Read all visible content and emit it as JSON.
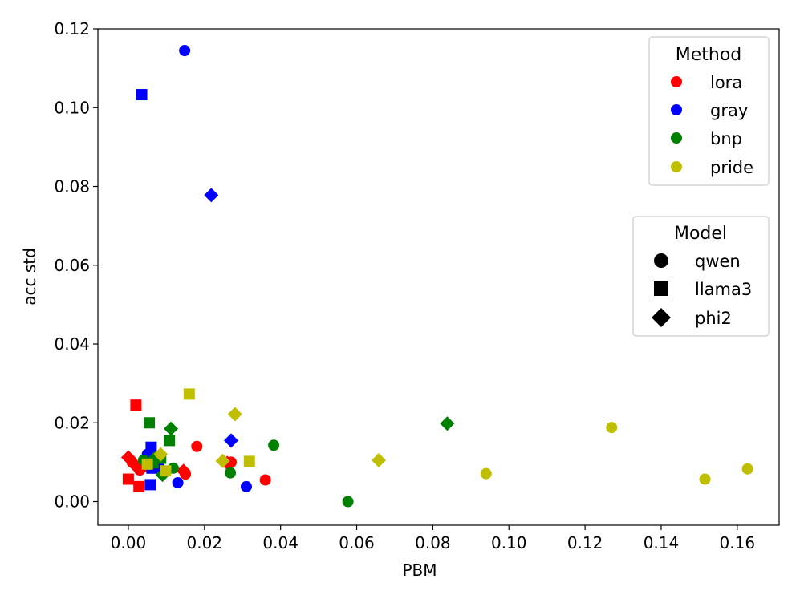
{
  "chart_data": {
    "type": "scatter",
    "xlabel": "PBM",
    "ylabel": "acc std",
    "xlim": [
      -0.008,
      0.171
    ],
    "ylim": [
      -0.006,
      0.12
    ],
    "xticks": [
      "0.00",
      "0.02",
      "0.04",
      "0.06",
      "0.08",
      "0.10",
      "0.12",
      "0.14",
      "0.16"
    ],
    "yticks": [
      "0.00",
      "0.02",
      "0.04",
      "0.06",
      "0.08",
      "0.10",
      "0.12"
    ],
    "grid": false,
    "legends": {
      "method": {
        "title": "Method",
        "placement": "top-right",
        "entries": [
          {
            "name": "lora",
            "color": "#ff0000"
          },
          {
            "name": "gray",
            "color": "#0000ff"
          },
          {
            "name": "bnp",
            "color": "#008000"
          },
          {
            "name": "pride",
            "color": "#bfbf00"
          }
        ]
      },
      "model": {
        "title": "Model",
        "placement": "right",
        "entries": [
          {
            "name": "qwen",
            "marker": "circle"
          },
          {
            "name": "llama3",
            "marker": "square"
          },
          {
            "name": "phi2",
            "marker": "diamond"
          }
        ]
      }
    },
    "series": [
      {
        "method": "lora",
        "model": "qwen",
        "points": [
          [
            0.001,
            0.01
          ],
          [
            0.003,
            0.008
          ],
          [
            0.015,
            0.007
          ],
          [
            0.018,
            0.014
          ],
          [
            0.036,
            0.0055
          ],
          [
            0.027,
            0.01
          ]
        ]
      },
      {
        "method": "lora",
        "model": "llama3",
        "points": [
          [
            0.002,
            0.0245
          ],
          [
            0.0,
            0.0057
          ],
          [
            0.0028,
            0.0038
          ],
          [
            0.005,
            0.009
          ]
        ]
      },
      {
        "method": "lora",
        "model": "phi2",
        "points": [
          [
            0.0,
            0.0112
          ],
          [
            0.0015,
            0.0095
          ],
          [
            0.0145,
            0.0078
          ],
          [
            0.026,
            0.0098
          ]
        ]
      },
      {
        "method": "gray",
        "model": "qwen",
        "points": [
          [
            0.0148,
            0.1145
          ],
          [
            0.005,
            0.012
          ],
          [
            0.013,
            0.0048
          ],
          [
            0.031,
            0.0038
          ],
          [
            0.008,
            0.009
          ]
        ]
      },
      {
        "method": "gray",
        "model": "llama3",
        "points": [
          [
            0.0035,
            0.1033
          ],
          [
            0.006,
            0.0138
          ],
          [
            0.0058,
            0.0043
          ],
          [
            0.0062,
            0.0085
          ]
        ]
      },
      {
        "method": "gray",
        "model": "phi2",
        "points": [
          [
            0.0218,
            0.0778
          ],
          [
            0.027,
            0.0155
          ],
          [
            0.005,
            0.011
          ]
        ]
      },
      {
        "method": "bnp",
        "model": "qwen",
        "points": [
          [
            0.0382,
            0.0143
          ],
          [
            0.0577,
            0.0
          ],
          [
            0.0268,
            0.0073
          ],
          [
            0.0118,
            0.0085
          ],
          [
            0.004,
            0.0105
          ]
        ]
      },
      {
        "method": "bnp",
        "model": "llama3",
        "points": [
          [
            0.0055,
            0.02
          ],
          [
            0.0108,
            0.0155
          ],
          [
            0.0085,
            0.011
          ],
          [
            0.0065,
            0.0098
          ]
        ]
      },
      {
        "method": "bnp",
        "model": "phi2",
        "points": [
          [
            0.0838,
            0.0198
          ],
          [
            0.0112,
            0.0185
          ],
          [
            0.009,
            0.0068
          ],
          [
            0.007,
            0.011
          ]
        ]
      },
      {
        "method": "pride",
        "model": "qwen",
        "points": [
          [
            0.127,
            0.0188
          ],
          [
            0.094,
            0.0071
          ],
          [
            0.1515,
            0.0057
          ],
          [
            0.1627,
            0.0083
          ]
        ]
      },
      {
        "method": "pride",
        "model": "llama3",
        "points": [
          [
            0.016,
            0.0273
          ],
          [
            0.0318,
            0.0102
          ],
          [
            0.005,
            0.0095
          ],
          [
            0.0098,
            0.0078
          ]
        ]
      },
      {
        "method": "pride",
        "model": "phi2",
        "points": [
          [
            0.028,
            0.0222
          ],
          [
            0.0248,
            0.0103
          ],
          [
            0.0658,
            0.0105
          ],
          [
            0.0085,
            0.012
          ]
        ]
      }
    ]
  }
}
